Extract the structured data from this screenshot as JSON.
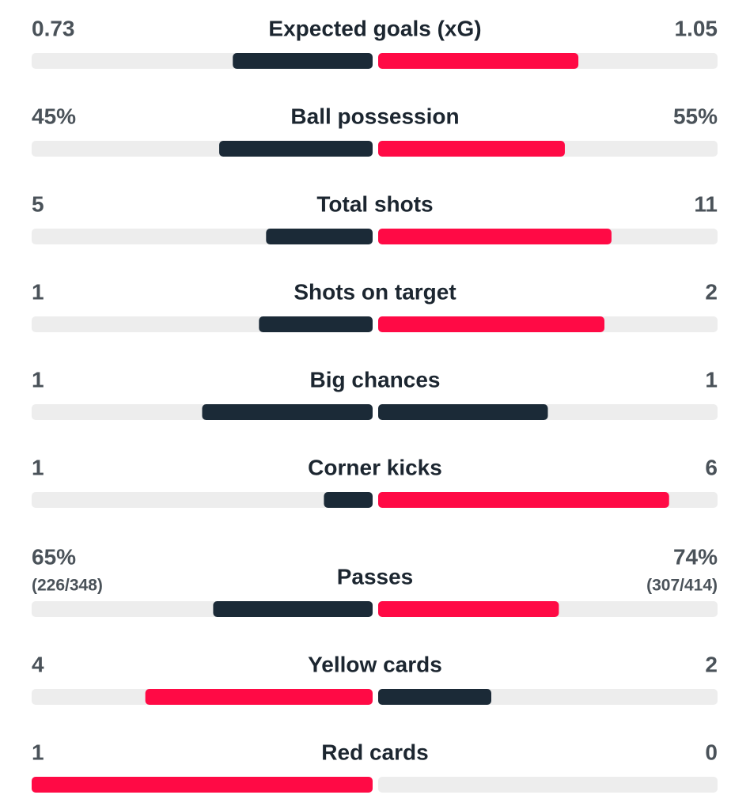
{
  "rows": [
    {
      "label": "Expected goals (xG)",
      "home": 0.73,
      "away": 1.05,
      "home_color": "#1b2a37",
      "away_color": "#ff0a45"
    },
    {
      "label": "Ball possession",
      "home": 45,
      "home_label": "45%",
      "away": 55,
      "away_label": "55%",
      "home_color": "#1b2a37",
      "away_color": "#ff0a45"
    },
    {
      "label": "Total shots",
      "home": 5,
      "away": 11,
      "home_color": "#1b2a37",
      "away_color": "#ff0a45"
    },
    {
      "label": "Shots on target",
      "home": 1,
      "away": 2,
      "home_color": "#1b2a37",
      "away_color": "#ff0a45"
    },
    {
      "label": "Big chances",
      "home": 1,
      "away": 1,
      "home_color": "#1b2a37",
      "away_color": "#1b2a37"
    },
    {
      "label": "Corner kicks",
      "home": 1,
      "away": 6,
      "home_color": "#1b2a37",
      "away_color": "#ff0a45"
    },
    {
      "label": "Passes",
      "home": 65,
      "home_label": "65%",
      "home_detail": "(226/348)",
      "away": 74,
      "away_label": "74%",
      "away_detail": "(307/414)",
      "home_color": "#1b2a37",
      "away_color": "#ff0a45"
    },
    {
      "label": "Yellow cards",
      "home": 4,
      "away": 2,
      "home_color": "#ff0a45",
      "away_color": "#1b2a37"
    },
    {
      "label": "Red cards",
      "home": 1,
      "away": 0,
      "home_color": "#ff0a45",
      "away_color": "#1b2a37"
    }
  ]
}
